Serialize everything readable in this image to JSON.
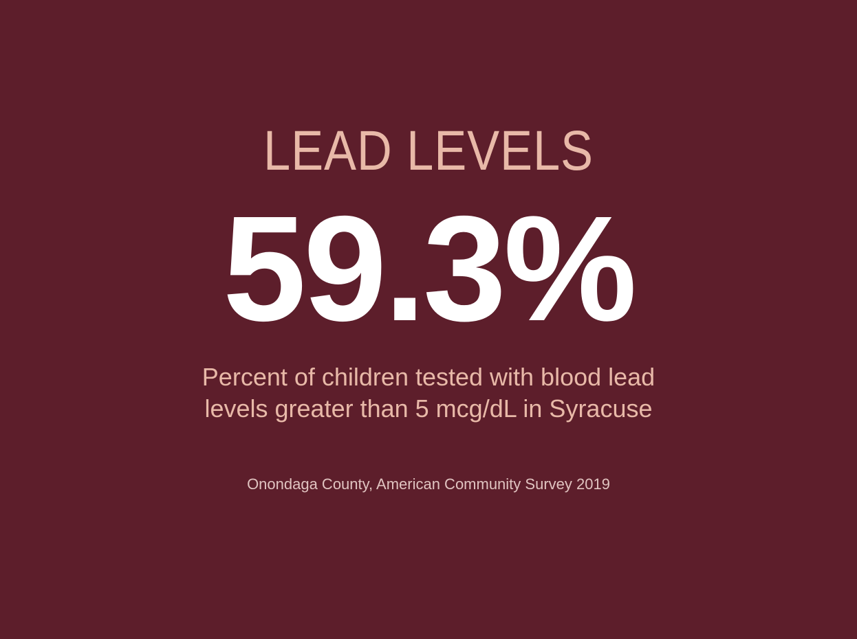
{
  "card": {
    "title": "LEAD LEVELS",
    "stat": "59.3%",
    "description": "Percent of children tested with blood lead levels greater than 5 mcg/dL in Syracuse",
    "source": "Onondaga County, American Community Survey 2019"
  }
}
